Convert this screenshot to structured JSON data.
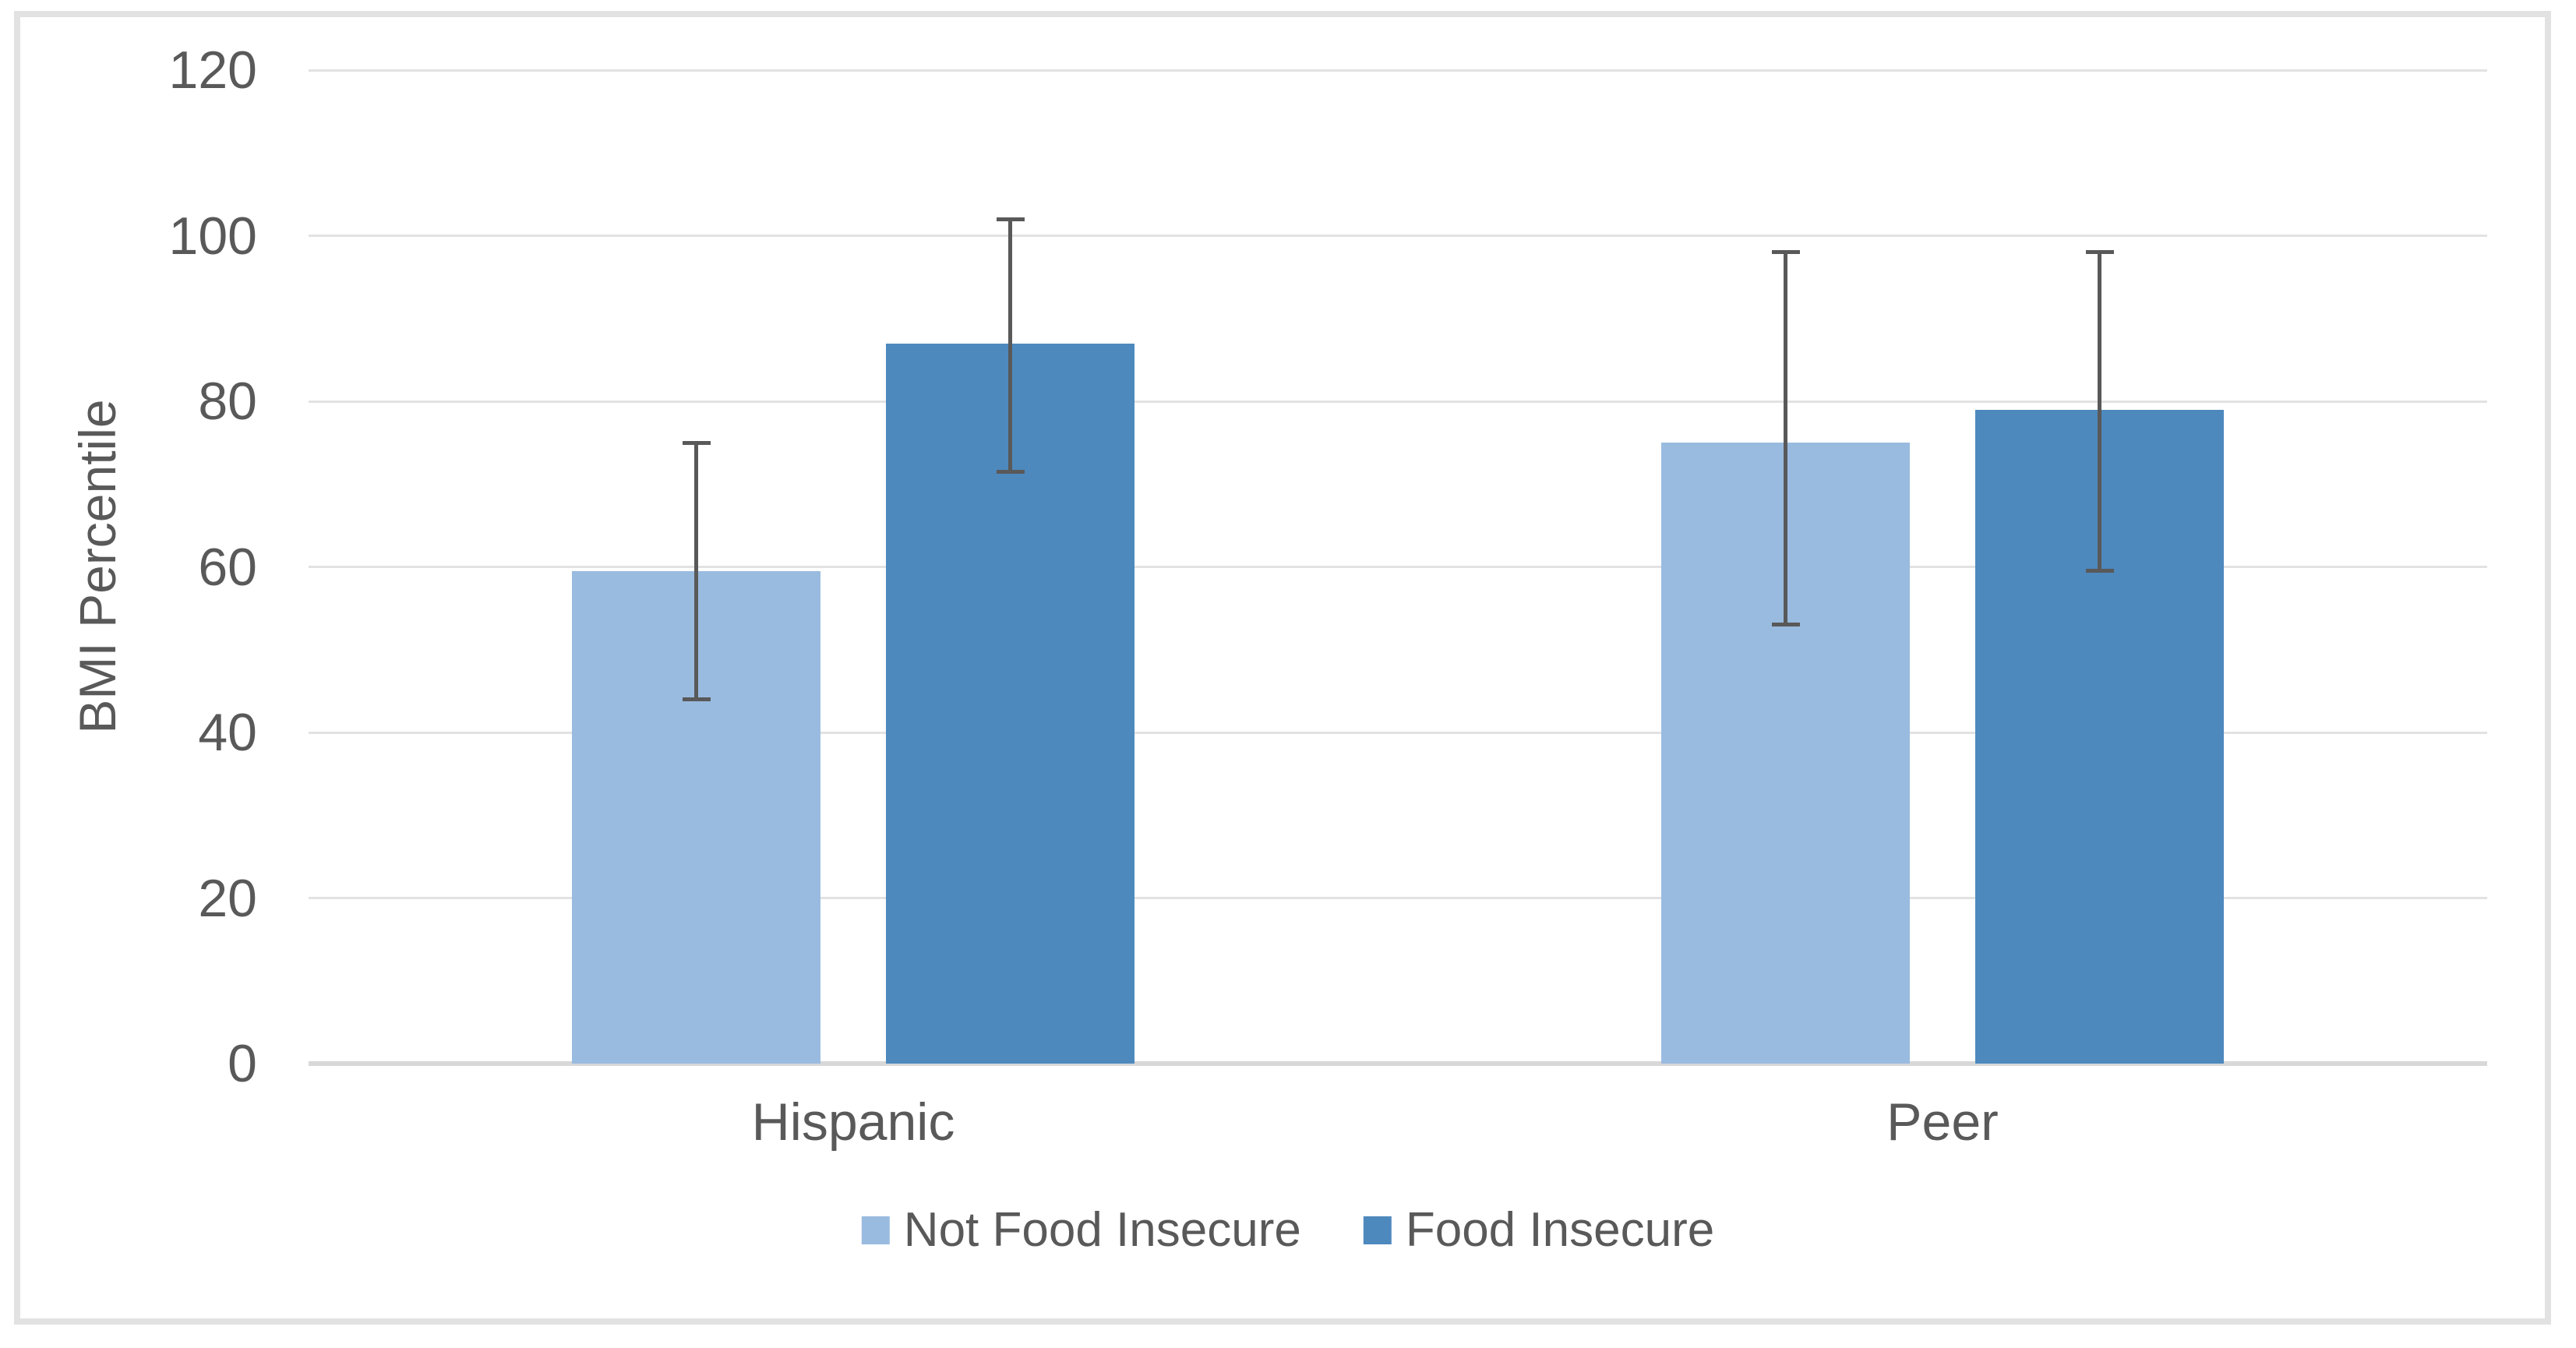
{
  "figure": {
    "background": "#ffffff",
    "frame_border_color": "#e2e2e2"
  },
  "colors": {
    "text": "#595959",
    "gridline": "#e2e2e2",
    "axis_line": "#d8d8d8",
    "error_bar": "#595959",
    "series_light": "#9ABBE0",
    "series_dark": "#4E89BE"
  },
  "chart_data": {
    "type": "bar",
    "title": "",
    "xlabel": "",
    "ylabel": "BMI Percentile",
    "categories": [
      "Hispanic",
      "Peer"
    ],
    "series": [
      {
        "name": "Not Food Insecure",
        "color": "#9ABBE0",
        "values": [
          59.5,
          75
        ],
        "error_low": [
          44,
          53
        ],
        "error_high": [
          75,
          98
        ]
      },
      {
        "name": "Food Insecure",
        "color": "#4E89BE",
        "values": [
          87,
          79
        ],
        "error_low": [
          71.5,
          59.5
        ],
        "error_high": [
          102,
          98
        ]
      }
    ],
    "ylim": [
      0,
      120
    ],
    "yticks": [
      0,
      20,
      40,
      60,
      80,
      100,
      120
    ],
    "grid": true,
    "legend_position": "bottom",
    "error_bars": true
  }
}
